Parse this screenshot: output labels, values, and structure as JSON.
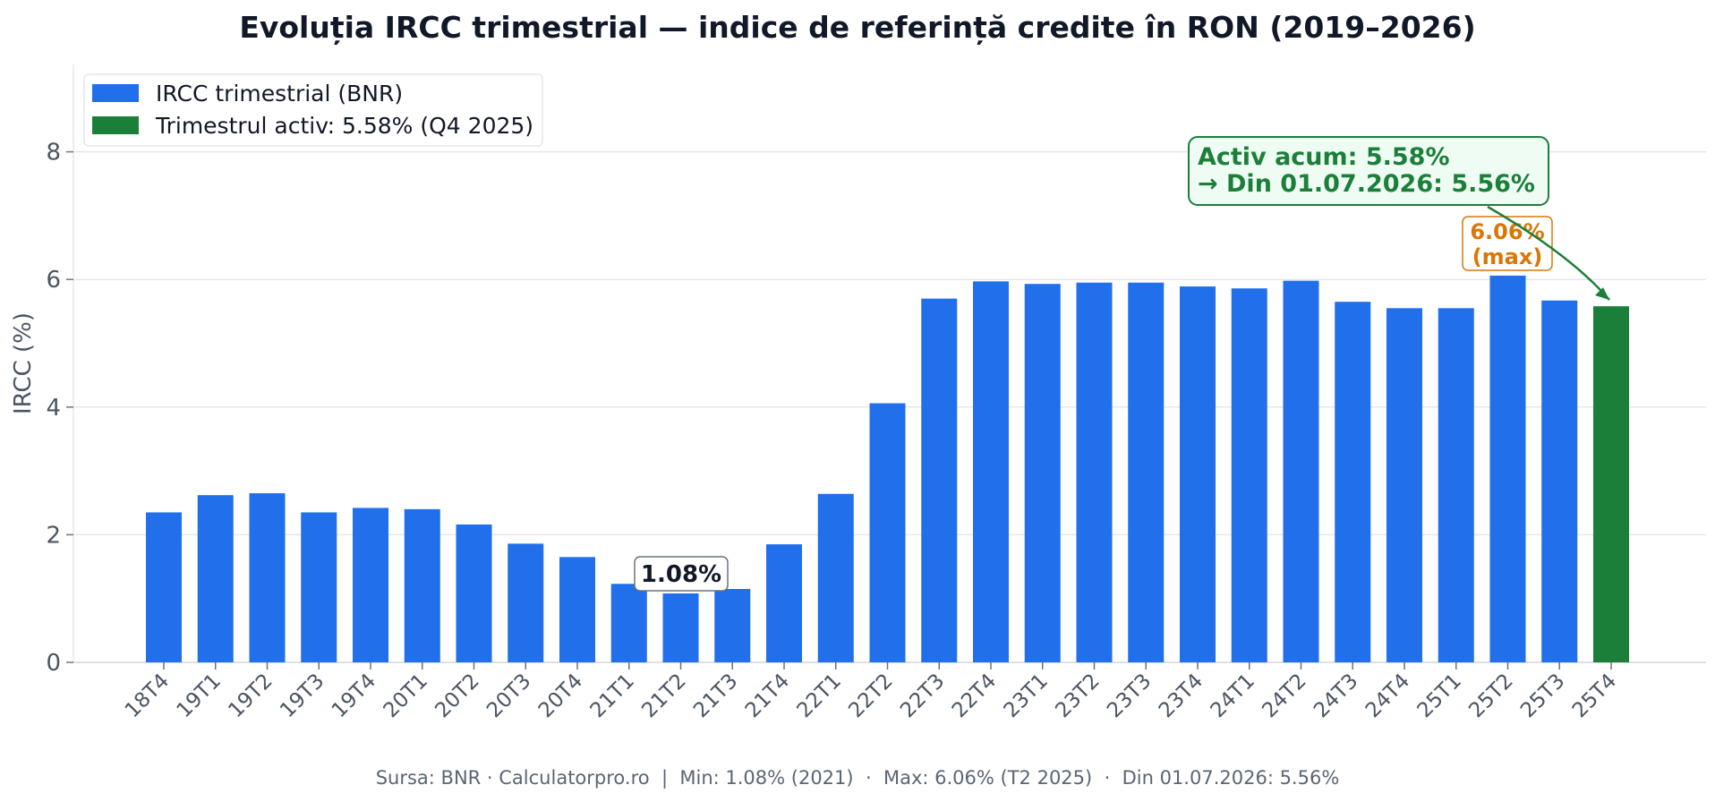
{
  "chart_data": {
    "type": "bar",
    "title": "Evoluția IRCC trimestrial — indice de referință credite în RON (2019–2026)",
    "ylabel": "IRCC (%)",
    "xlabel": "",
    "ylim": [
      0,
      9.4
    ],
    "yticks": [
      0,
      2,
      4,
      6,
      8
    ],
    "grid": "y",
    "legend_position": "top-left",
    "categories": [
      "18T4",
      "19T1",
      "19T2",
      "19T3",
      "19T4",
      "20T1",
      "20T2",
      "20T3",
      "20T4",
      "21T1",
      "21T2",
      "21T3",
      "21T4",
      "22T1",
      "22T2",
      "22T3",
      "22T4",
      "23T1",
      "23T2",
      "23T3",
      "23T4",
      "24T1",
      "24T2",
      "24T3",
      "24T4",
      "25T1",
      "25T2",
      "25T3",
      "25T4"
    ],
    "series": [
      {
        "name": "IRCC trimestrial (BNR)",
        "values": [
          2.35,
          2.62,
          2.65,
          2.35,
          2.42,
          2.4,
          2.16,
          1.86,
          1.65,
          1.23,
          1.08,
          1.15,
          1.85,
          2.64,
          4.06,
          5.7,
          5.97,
          5.93,
          5.95,
          5.95,
          5.89,
          5.86,
          5.98,
          5.65,
          5.55,
          5.55,
          6.06,
          5.67,
          5.58
        ],
        "color": "#216fea"
      }
    ],
    "highlight": {
      "index": 28,
      "name": "Trimestrul activ: 5.58% (Q4 2025)",
      "color": "#1b7f3a"
    },
    "annotations": {
      "min": {
        "index": 10,
        "text": "1.08%"
      },
      "max": {
        "index": 26,
        "line1": "6.06%",
        "line2": "(max)"
      },
      "active": {
        "index": 28,
        "line1": "Activ acum: 5.58%",
        "line2": "→ Din 01.07.2026: 5.56%"
      }
    },
    "footer": "Sursa: BNR · Calculatorpro.ro  |  Min: 1.08% (2021)  ·  Max: 6.06% (T2 2025)  ·  Din 01.07.2026: 5.56%"
  },
  "colors": {
    "bar": "#216fea",
    "active": "#1b7f3a",
    "max_accent": "#d97706",
    "grid": "#e5e7eb",
    "axis_text": "#4b5563"
  }
}
